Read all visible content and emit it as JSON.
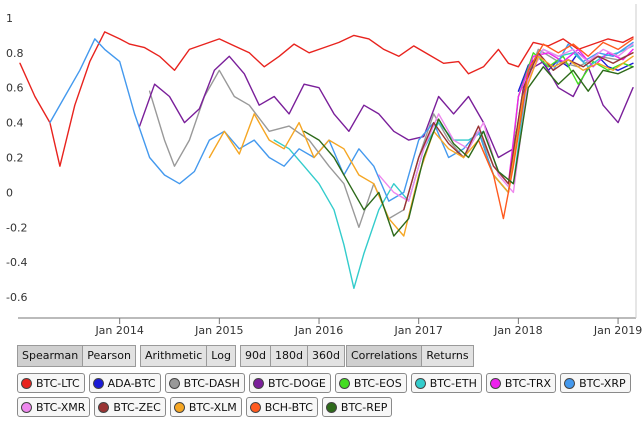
{
  "chart_data": {
    "type": "line",
    "x_ticks": [
      "Jan 2014",
      "Jan 2015",
      "Jan 2016",
      "Jan 2017",
      "Jan 2018",
      "Jan 2019"
    ],
    "y_ticks": [
      "1",
      "0.8",
      "0.6",
      "0.4",
      "0.2",
      "0",
      "-0.2",
      "-0.4",
      "-0.6"
    ],
    "ylim": [
      -0.72,
      1.08
    ],
    "xlim": [
      2012.98,
      2019.18
    ],
    "grid": false,
    "series": [
      {
        "name": "BTC-LTC",
        "color": "#e8231e",
        "x": [
          2013.0,
          2013.15,
          2013.3,
          2013.4,
          2013.55,
          2013.7,
          2013.85,
          2014.0,
          2014.1,
          2014.25,
          2014.4,
          2014.55,
          2014.7,
          2014.85,
          2015.0,
          2015.15,
          2015.3,
          2015.45,
          2015.6,
          2015.75,
          2015.9,
          2016.05,
          2016.2,
          2016.35,
          2016.5,
          2016.65,
          2016.8,
          2016.95,
          2017.1,
          2017.25,
          2017.4,
          2017.5,
          2017.65,
          2017.8,
          2017.9,
          2018.0,
          2018.15,
          2018.3,
          2018.45,
          2018.6,
          2018.75,
          2018.9,
          2019.05,
          2019.15
        ],
        "y": [
          0.74,
          0.55,
          0.4,
          0.15,
          0.5,
          0.75,
          0.92,
          0.88,
          0.85,
          0.83,
          0.78,
          0.7,
          0.82,
          0.85,
          0.88,
          0.84,
          0.8,
          0.72,
          0.78,
          0.85,
          0.8,
          0.83,
          0.86,
          0.9,
          0.88,
          0.82,
          0.78,
          0.84,
          0.79,
          0.74,
          0.75,
          0.68,
          0.72,
          0.82,
          0.74,
          0.72,
          0.86,
          0.84,
          0.88,
          0.82,
          0.85,
          0.88,
          0.86,
          0.89
        ]
      },
      {
        "name": "ADA-BTC",
        "color": "#1a1ad6",
        "x": [
          2018.0,
          2018.1,
          2018.2,
          2018.3,
          2018.4,
          2018.5,
          2018.6,
          2018.7,
          2018.8,
          2018.9,
          2019.0,
          2019.15
        ],
        "y": [
          0.58,
          0.73,
          0.78,
          0.7,
          0.76,
          0.72,
          0.8,
          0.75,
          0.78,
          0.72,
          0.7,
          0.74
        ]
      },
      {
        "name": "BTC-DASH",
        "color": "#999999",
        "x": [
          2014.3,
          2014.45,
          2014.55,
          2014.7,
          2014.85,
          2015.0,
          2015.15,
          2015.3,
          2015.5,
          2015.7,
          2015.9,
          2016.1,
          2016.25,
          2016.4,
          2016.55,
          2016.7,
          2016.85,
          2017.0,
          2017.15,
          2017.3,
          2017.45,
          2017.6,
          2017.75,
          2017.9,
          2018.05,
          2018.2,
          2018.4,
          2018.6,
          2018.8,
          2019.0,
          2019.15
        ],
        "y": [
          0.58,
          0.3,
          0.15,
          0.3,
          0.55,
          0.7,
          0.55,
          0.5,
          0.35,
          0.38,
          0.3,
          0.15,
          0.05,
          -0.2,
          0.05,
          -0.15,
          -0.1,
          0.2,
          0.45,
          0.3,
          0.2,
          0.35,
          0.15,
          0.05,
          0.6,
          0.82,
          0.75,
          0.72,
          0.78,
          0.76,
          0.8
        ]
      },
      {
        "name": "BTC-DOGE",
        "color": "#7a1f9a",
        "x": [
          2014.2,
          2014.35,
          2014.5,
          2014.65,
          2014.8,
          2014.95,
          2015.1,
          2015.25,
          2015.4,
          2015.55,
          2015.7,
          2015.85,
          2016.0,
          2016.15,
          2016.3,
          2016.45,
          2016.6,
          2016.75,
          2016.9,
          2017.05,
          2017.2,
          2017.35,
          2017.5,
          2017.65,
          2017.8,
          2017.95,
          2018.1,
          2018.25,
          2018.4,
          2018.55,
          2018.7,
          2018.85,
          2019.0,
          2019.15
        ],
        "y": [
          0.38,
          0.62,
          0.55,
          0.4,
          0.48,
          0.7,
          0.78,
          0.68,
          0.5,
          0.55,
          0.45,
          0.62,
          0.6,
          0.45,
          0.35,
          0.5,
          0.45,
          0.35,
          0.3,
          0.32,
          0.55,
          0.45,
          0.55,
          0.4,
          0.2,
          0.25,
          0.7,
          0.75,
          0.6,
          0.55,
          0.72,
          0.5,
          0.4,
          0.6
        ]
      },
      {
        "name": "BTC-EOS",
        "color": "#44dd22",
        "x": [
          2017.6,
          2017.75,
          2017.9,
          2018.0,
          2018.15,
          2018.3,
          2018.45,
          2018.6,
          2018.75,
          2018.9,
          2019.05,
          2019.15
        ],
        "y": [
          0.35,
          0.1,
          0.0,
          0.55,
          0.8,
          0.72,
          0.78,
          0.62,
          0.75,
          0.7,
          0.74,
          0.72
        ]
      },
      {
        "name": "BTC-ETH",
        "color": "#33cccc",
        "x": [
          2015.55,
          2015.7,
          2015.85,
          2016.0,
          2016.15,
          2016.25,
          2016.35,
          2016.45,
          2016.6,
          2016.75,
          2016.9,
          2017.05,
          2017.2,
          2017.35,
          2017.5,
          2017.65,
          2017.8,
          2017.95,
          2018.1,
          2018.25,
          2018.4,
          2018.55,
          2018.7,
          2018.85,
          2019.0,
          2019.15
        ],
        "y": [
          0.3,
          0.25,
          0.15,
          0.05,
          -0.1,
          -0.3,
          -0.55,
          -0.35,
          -0.1,
          0.05,
          -0.05,
          0.25,
          0.4,
          0.3,
          0.3,
          0.35,
          0.12,
          0.05,
          0.7,
          0.82,
          0.78,
          0.8,
          0.72,
          0.78,
          0.8,
          0.84
        ]
      },
      {
        "name": "BTC-TRX",
        "color": "#ee22ee",
        "x": [
          2017.9,
          2018.0,
          2018.15,
          2018.3,
          2018.45,
          2018.6,
          2018.75,
          2018.9,
          2019.05,
          2019.15
        ],
        "y": [
          0.05,
          0.55,
          0.78,
          0.8,
          0.75,
          0.82,
          0.72,
          0.8,
          0.76,
          0.82
        ]
      },
      {
        "name": "BTC-XRP",
        "color": "#4499ee",
        "x": [
          2013.3,
          2013.45,
          2013.6,
          2013.75,
          2013.85,
          2014.0,
          2014.15,
          2014.3,
          2014.45,
          2014.6,
          2014.75,
          2014.9,
          2015.05,
          2015.2,
          2015.35,
          2015.5,
          2015.65,
          2015.8,
          2015.95,
          2016.1,
          2016.25,
          2016.4,
          2016.55,
          2016.7,
          2016.85,
          2017.0,
          2017.15,
          2017.3,
          2017.45,
          2017.6,
          2017.75,
          2017.9,
          2018.05,
          2018.2,
          2018.35,
          2018.5,
          2018.65,
          2018.8,
          2018.95,
          2019.15
        ],
        "y": [
          0.4,
          0.55,
          0.7,
          0.88,
          0.82,
          0.75,
          0.45,
          0.2,
          0.1,
          0.05,
          0.12,
          0.3,
          0.35,
          0.25,
          0.3,
          0.2,
          0.15,
          0.25,
          0.2,
          0.3,
          0.1,
          0.25,
          0.15,
          -0.05,
          0.0,
          0.3,
          0.4,
          0.2,
          0.25,
          0.35,
          0.1,
          0.0,
          0.6,
          0.8,
          0.7,
          0.85,
          0.75,
          0.8,
          0.78,
          0.86
        ]
      },
      {
        "name": "BTC-XMR",
        "color": "#ee88ee",
        "x": [
          2016.6,
          2016.75,
          2016.9,
          2017.05,
          2017.2,
          2017.35,
          2017.5,
          2017.65,
          2017.8,
          2017.95,
          2018.1,
          2018.25,
          2018.4,
          2018.55,
          2018.7,
          2018.85,
          2019.0,
          2019.15
        ],
        "y": [
          0.1,
          0.0,
          -0.05,
          0.25,
          0.45,
          0.3,
          0.25,
          0.4,
          0.1,
          0.0,
          0.65,
          0.82,
          0.78,
          0.82,
          0.75,
          0.82,
          0.78,
          0.85
        ]
      },
      {
        "name": "BTC-ZEC",
        "color": "#993333",
        "x": [
          2016.85,
          2017.0,
          2017.15,
          2017.3,
          2017.45,
          2017.6,
          2017.75,
          2017.9,
          2018.05,
          2018.2,
          2018.35,
          2018.5,
          2018.65,
          2018.8,
          2018.95,
          2019.15
        ],
        "y": [
          -0.1,
          0.2,
          0.4,
          0.28,
          0.2,
          0.38,
          0.15,
          0.05,
          0.6,
          0.8,
          0.7,
          0.76,
          0.72,
          0.78,
          0.74,
          0.8
        ]
      },
      {
        "name": "BTC-XLM",
        "color": "#f5a623",
        "x": [
          2014.9,
          2015.05,
          2015.2,
          2015.35,
          2015.5,
          2015.65,
          2015.8,
          2015.95,
          2016.1,
          2016.25,
          2016.4,
          2016.55,
          2016.7,
          2016.85,
          2017.0,
          2017.15,
          2017.3,
          2017.45,
          2017.6,
          2017.75,
          2017.9,
          2018.05,
          2018.2,
          2018.35,
          2018.5,
          2018.65,
          2018.8,
          2018.95,
          2019.15
        ],
        "y": [
          0.2,
          0.35,
          0.22,
          0.45,
          0.3,
          0.25,
          0.4,
          0.2,
          0.3,
          0.25,
          0.1,
          0.05,
          -0.15,
          -0.25,
          0.1,
          0.35,
          0.25,
          0.2,
          0.3,
          0.1,
          0.0,
          0.55,
          0.78,
          0.72,
          0.76,
          0.7,
          0.74,
          0.7,
          0.78
        ]
      },
      {
        "name": "BCH-BTC",
        "color": "#ff5a1f",
        "x": [
          2017.6,
          2017.75,
          2017.85,
          2017.95,
          2018.1,
          2018.25,
          2018.4,
          2018.55,
          2018.7,
          2018.85,
          2019.0,
          2019.15
        ],
        "y": [
          0.3,
          0.1,
          -0.15,
          0.15,
          0.7,
          0.85,
          0.8,
          0.85,
          0.78,
          0.86,
          0.82,
          0.88
        ]
      },
      {
        "name": "BTC-REP",
        "color": "#2d6a1a",
        "x": [
          2015.85,
          2016.0,
          2016.15,
          2016.3,
          2016.45,
          2016.6,
          2016.75,
          2016.9,
          2017.05,
          2017.2,
          2017.35,
          2017.5,
          2017.65,
          2017.8,
          2017.95,
          2018.1,
          2018.25,
          2018.4,
          2018.55,
          2018.7,
          2018.85,
          2019.0,
          2019.15
        ],
        "y": [
          0.35,
          0.3,
          0.2,
          0.05,
          -0.1,
          0.0,
          -0.25,
          -0.15,
          0.2,
          0.42,
          0.28,
          0.2,
          0.35,
          0.12,
          0.05,
          0.6,
          0.72,
          0.62,
          0.7,
          0.58,
          0.7,
          0.68,
          0.72
        ]
      }
    ]
  },
  "controls": {
    "method": [
      "Spearman",
      "Pearson"
    ],
    "scale": [
      "Arithmetic",
      "Log"
    ],
    "window": [
      "90d",
      "180d",
      "360d"
    ],
    "view": [
      "Correlations",
      "Returns"
    ]
  },
  "legend": {
    "row1": [
      {
        "label": "BTC-LTC",
        "color": "#e8231e"
      },
      {
        "label": "ADA-BTC",
        "color": "#1a1ad6"
      },
      {
        "label": "BTC-DASH",
        "color": "#999999"
      },
      {
        "label": "BTC-DOGE",
        "color": "#7a1f9a"
      },
      {
        "label": "BTC-EOS",
        "color": "#44dd22"
      },
      {
        "label": "BTC-ETH",
        "color": "#33cccc"
      },
      {
        "label": "BTC-TRX",
        "color": "#ee22ee"
      },
      {
        "label": "BTC-XRP",
        "color": "#4499ee"
      }
    ],
    "row2": [
      {
        "label": "BTC-XMR",
        "color": "#ee88ee"
      },
      {
        "label": "BTC-ZEC",
        "color": "#993333"
      },
      {
        "label": "BTC-XLM",
        "color": "#f5a623"
      },
      {
        "label": "BCH-BTC",
        "color": "#ff5a1f"
      },
      {
        "label": "BTC-REP",
        "color": "#2d6a1a"
      }
    ]
  }
}
